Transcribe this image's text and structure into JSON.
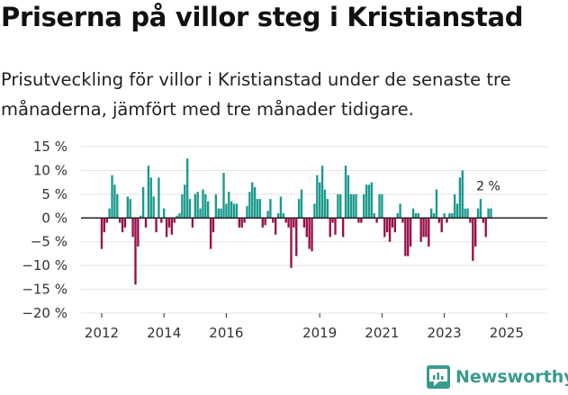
{
  "title": "Priserna på villor steg i Kristianstad",
  "subtitle": "Prisutveckling för villor i Kristianstad under de senaste tre månaderna, jämfört med tre månader tidigare.",
  "brand": {
    "name": "Newsworthy",
    "icon": "newsworthy-logo-icon"
  },
  "colors": {
    "positive": "#1a9a8c",
    "negative": "#9a0f48",
    "grid": "#e3e3e3",
    "brand": "#3a9a8c"
  },
  "chart_data": {
    "type": "bar",
    "ylabel": "",
    "xlabel": "",
    "ylim": [
      -20,
      15
    ],
    "yticks": [
      15,
      10,
      5,
      0,
      -5,
      -10,
      -15,
      -20
    ],
    "ytick_labels": [
      "15 %",
      "10 %",
      "5 %",
      "0 %",
      "−5 %",
      "−10 %",
      "−15 %",
      "−20 %"
    ],
    "xtick_labels": [
      "2012",
      "2014",
      "2016",
      "2019",
      "2021",
      "2023",
      "2025"
    ],
    "xtick_positions": [
      2012,
      2014,
      2016,
      2019,
      2021,
      2023,
      2025
    ],
    "x_start": 2012.0,
    "x_step": 0.0833333,
    "values": [
      -6.5,
      -3,
      -1,
      2,
      9,
      7,
      5,
      -1,
      -3,
      -2,
      4.5,
      4,
      -4,
      -14,
      -6,
      0.5,
      6.5,
      -2,
      11,
      8.5,
      4.5,
      -3,
      8.5,
      -1,
      2,
      -4,
      -2,
      -3.5,
      -1,
      0.5,
      1,
      5,
      7,
      12.5,
      4,
      -2,
      5,
      5.5,
      2,
      6,
      5,
      3.5,
      -6.5,
      -3,
      5,
      2,
      2,
      9.5,
      3,
      5.5,
      3.5,
      3,
      3,
      -2,
      -2,
      -1,
      2.5,
      5.5,
      7.5,
      6.5,
      4,
      4,
      -2,
      -1.5,
      1.5,
      4,
      -1,
      -3.5,
      1,
      4.5,
      1,
      -1,
      -2,
      -10.5,
      -2,
      -8,
      4,
      6,
      -2,
      -4,
      -6.5,
      -7,
      3,
      9,
      7.5,
      11,
      6,
      4,
      -4,
      -1,
      -3.5,
      5,
      5,
      -4,
      11,
      9,
      5,
      5,
      5,
      -1,
      -1,
      5,
      7,
      7,
      7.5,
      1,
      -1,
      5,
      5,
      -4,
      -3,
      -5,
      -2,
      -3,
      1,
      3,
      -1,
      -8,
      -8,
      -6,
      2,
      1,
      1,
      -5,
      -4,
      -4,
      -6,
      2,
      1,
      6,
      -1,
      -3,
      1,
      -1,
      1,
      1,
      5,
      3,
      8.5,
      10,
      2,
      2,
      -1,
      -9,
      -6,
      2,
      4,
      -1,
      -4,
      2,
      2
    ],
    "annotation": "2 %"
  }
}
